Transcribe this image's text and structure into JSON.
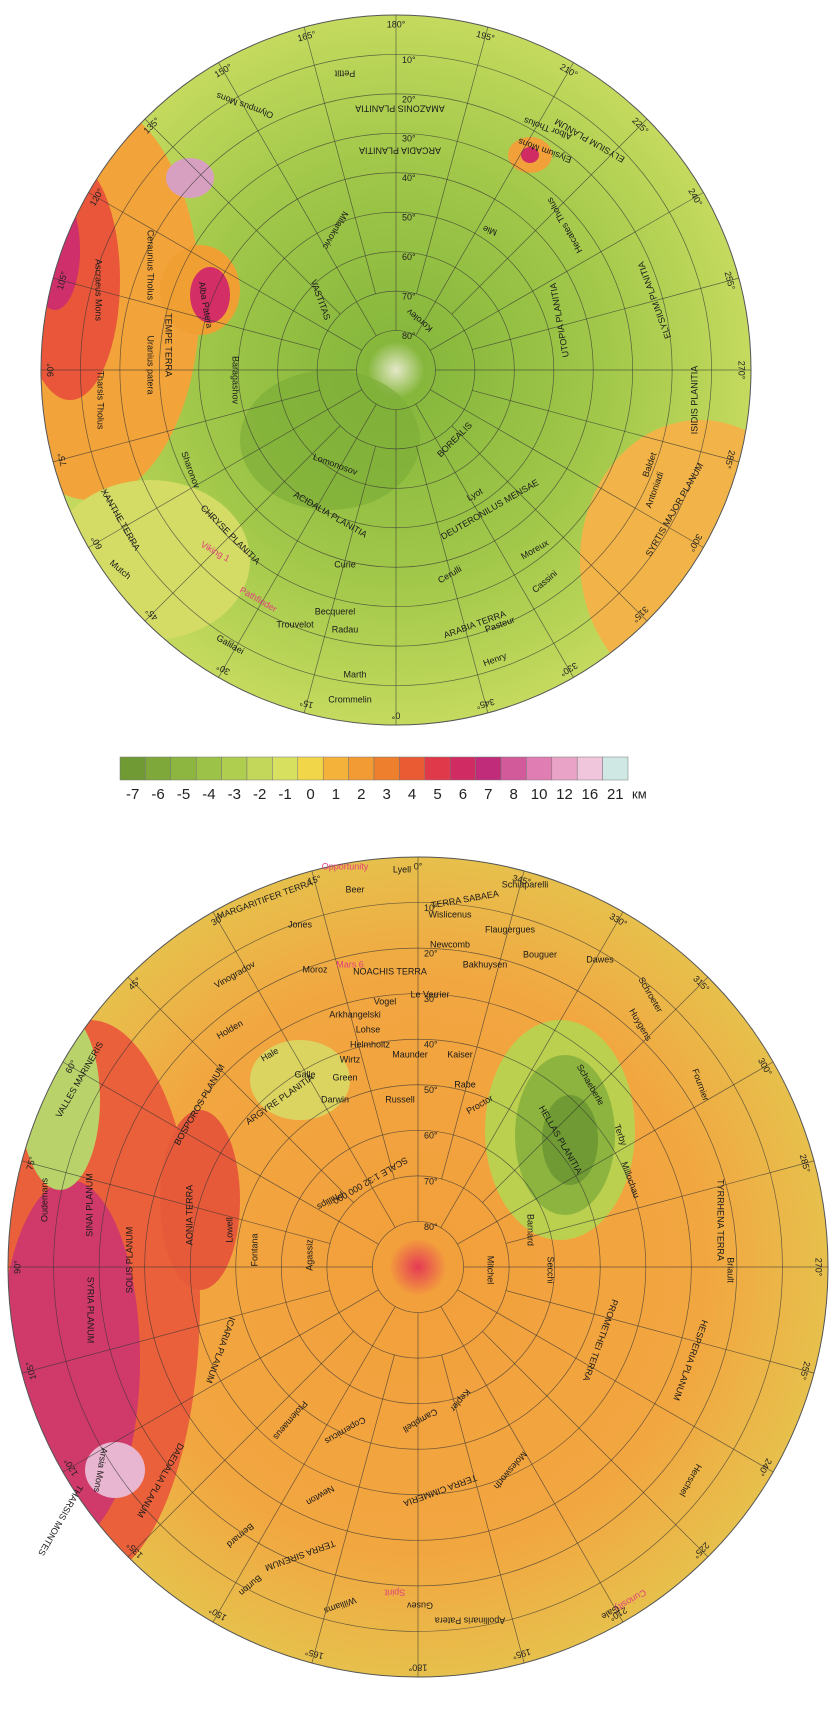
{
  "north_map": {
    "lon_labels": [
      "180°",
      "195°",
      "210°",
      "225°",
      "240°",
      "255°",
      "270°",
      "285°",
      "300°",
      "315°",
      "330°",
      "345°",
      "0°",
      "15°",
      "30°",
      "45°",
      "60°",
      "75°",
      "90°",
      "105°",
      "120°",
      "135°",
      "150°",
      "165°"
    ],
    "lat_labels": [
      "80°",
      "70°",
      "60°",
      "50°",
      "40°",
      "30°",
      "20°",
      "10°"
    ],
    "labels": [
      "ARCADIA PLANITIA",
      "AMAZONIS PLANITIA",
      "Pettit",
      "Olympus Mons",
      "Elysium Mons",
      "ELYSIUM PLANUM",
      "Albor Tholus",
      "Hecates Tholus",
      "ELYSIUM PLANITIA",
      "UTOPIA PLANITIA",
      "Mie",
      "Milankovic",
      "Korolev",
      "ISIDIS PLANITIA",
      "SYRTIS MAJOR PLANUM",
      "Antoniadi",
      "Baldet",
      "ARABIA TERRA",
      "DEUTERONILUS MENSAE",
      "Lyot",
      "Moreux",
      "Cerulli",
      "Cassini",
      "Pasteur",
      "Henry",
      "Curie",
      "Becquerel",
      "Radau",
      "Trouvelot",
      "Marth",
      "Crommelin",
      "Galilaei",
      "Mutch",
      "XANTHE TERRA",
      "CHRYSE PLANITIA",
      "ACIDALIA PLANITIA",
      "Lomonosov",
      "TEMPE TERRA",
      "Alba Patera",
      "Ascraeus Mons",
      "Tharsis Tholus",
      "Uranius patera",
      "Ceraunius Tholus",
      "Baragashov",
      "Sharonov",
      "Viking 1",
      "Pathfinder",
      "VASTITAS",
      "BOREALIS"
    ]
  },
  "legend": {
    "values": [
      -7,
      -6,
      -5,
      -4,
      -3,
      -2,
      -1,
      0,
      1,
      2,
      3,
      4,
      5,
      6,
      7,
      8,
      10,
      12,
      16,
      21
    ],
    "unit": "км",
    "colors": [
      "#6f9a34",
      "#7fa83a",
      "#8db640",
      "#9cc247",
      "#afcd4f",
      "#c3d85a",
      "#d8e060",
      "#f2d64a",
      "#f5b23a",
      "#f29a33",
      "#ee7f2d",
      "#ea5a33",
      "#e03a4a",
      "#d02b63",
      "#c02c7a",
      "#d35a9a",
      "#e07eb3",
      "#e8a3c6",
      "#efc6dc",
      "#cfe8e4"
    ]
  },
  "south_map": {
    "lon_labels": [
      "0°",
      "345°",
      "330°",
      "315°",
      "300°",
      "285°",
      "270°",
      "255°",
      "240°",
      "225°",
      "210°",
      "195°",
      "180°",
      "165°",
      "150°",
      "135°",
      "120°",
      "105°",
      "90°",
      "75°",
      "60°",
      "45°",
      "30°",
      "15°"
    ],
    "lat_labels": [
      "80°",
      "70°",
      "60°",
      "50°",
      "40°",
      "30°",
      "20°",
      "10°"
    ],
    "labels": [
      "Opportunity",
      "Lyell",
      "Schiaparelli",
      "TERRA SABAEA",
      "MARGARITIFER TERRA",
      "Beer",
      "Wislicenus",
      "Flaugergues",
      "Jones",
      "Newcomb",
      "Bakhuysen",
      "Bouguer",
      "Dawes",
      "Vinogradov",
      "Moroz",
      "Mars 6",
      "NOACHIS TERRA",
      "Le Verrier",
      "Schroeter",
      "Huygens",
      "Vogel",
      "Arkhangelski",
      "Lohse",
      "Helmholtz",
      "Holden",
      "Hale",
      "Maunder",
      "Kaiser",
      "Wirtz",
      "Galle",
      "Green",
      "ARGYRE PLANITIA",
      "Darwin",
      "Rabe",
      "Proctor",
      "Russell",
      "BOSPOROS PLANUM",
      "Schaeberle",
      "Fournier",
      "HELLAS PLANITIA",
      "Terby",
      "Millochau",
      "TYRRHENA TERRA",
      "Barnard",
      "Lowell",
      "AONIA TERRA",
      "Fontana",
      "SOLIS PLANUM",
      "SINAI PLANUM",
      "Oudemans",
      "VALLES MARINERIS",
      "SYRIA PLANUM",
      "THARSIS MONTES",
      "Arsia Mons",
      "ICARIA PLANUM",
      "DAEDALIA PLANUM",
      "Agassiz",
      "Phillips",
      "Mitchel",
      "Secchi",
      "PROMETHEI TERRA",
      "HESPERIA PLANUM",
      "Briault",
      "Molesworth",
      "TERRA CIMMERIA",
      "Copernicus",
      "Ptolemaeus",
      "Newton",
      "Kepler",
      "Campbell",
      "TERRA SIRENUM",
      "Gusev",
      "Apollinaris Patera",
      "Spirit",
      "Curiosity",
      "Gale",
      "Herschel",
      "Williams",
      "Burton",
      "Bernard",
      "SCALE 1:32 000 000"
    ]
  }
}
